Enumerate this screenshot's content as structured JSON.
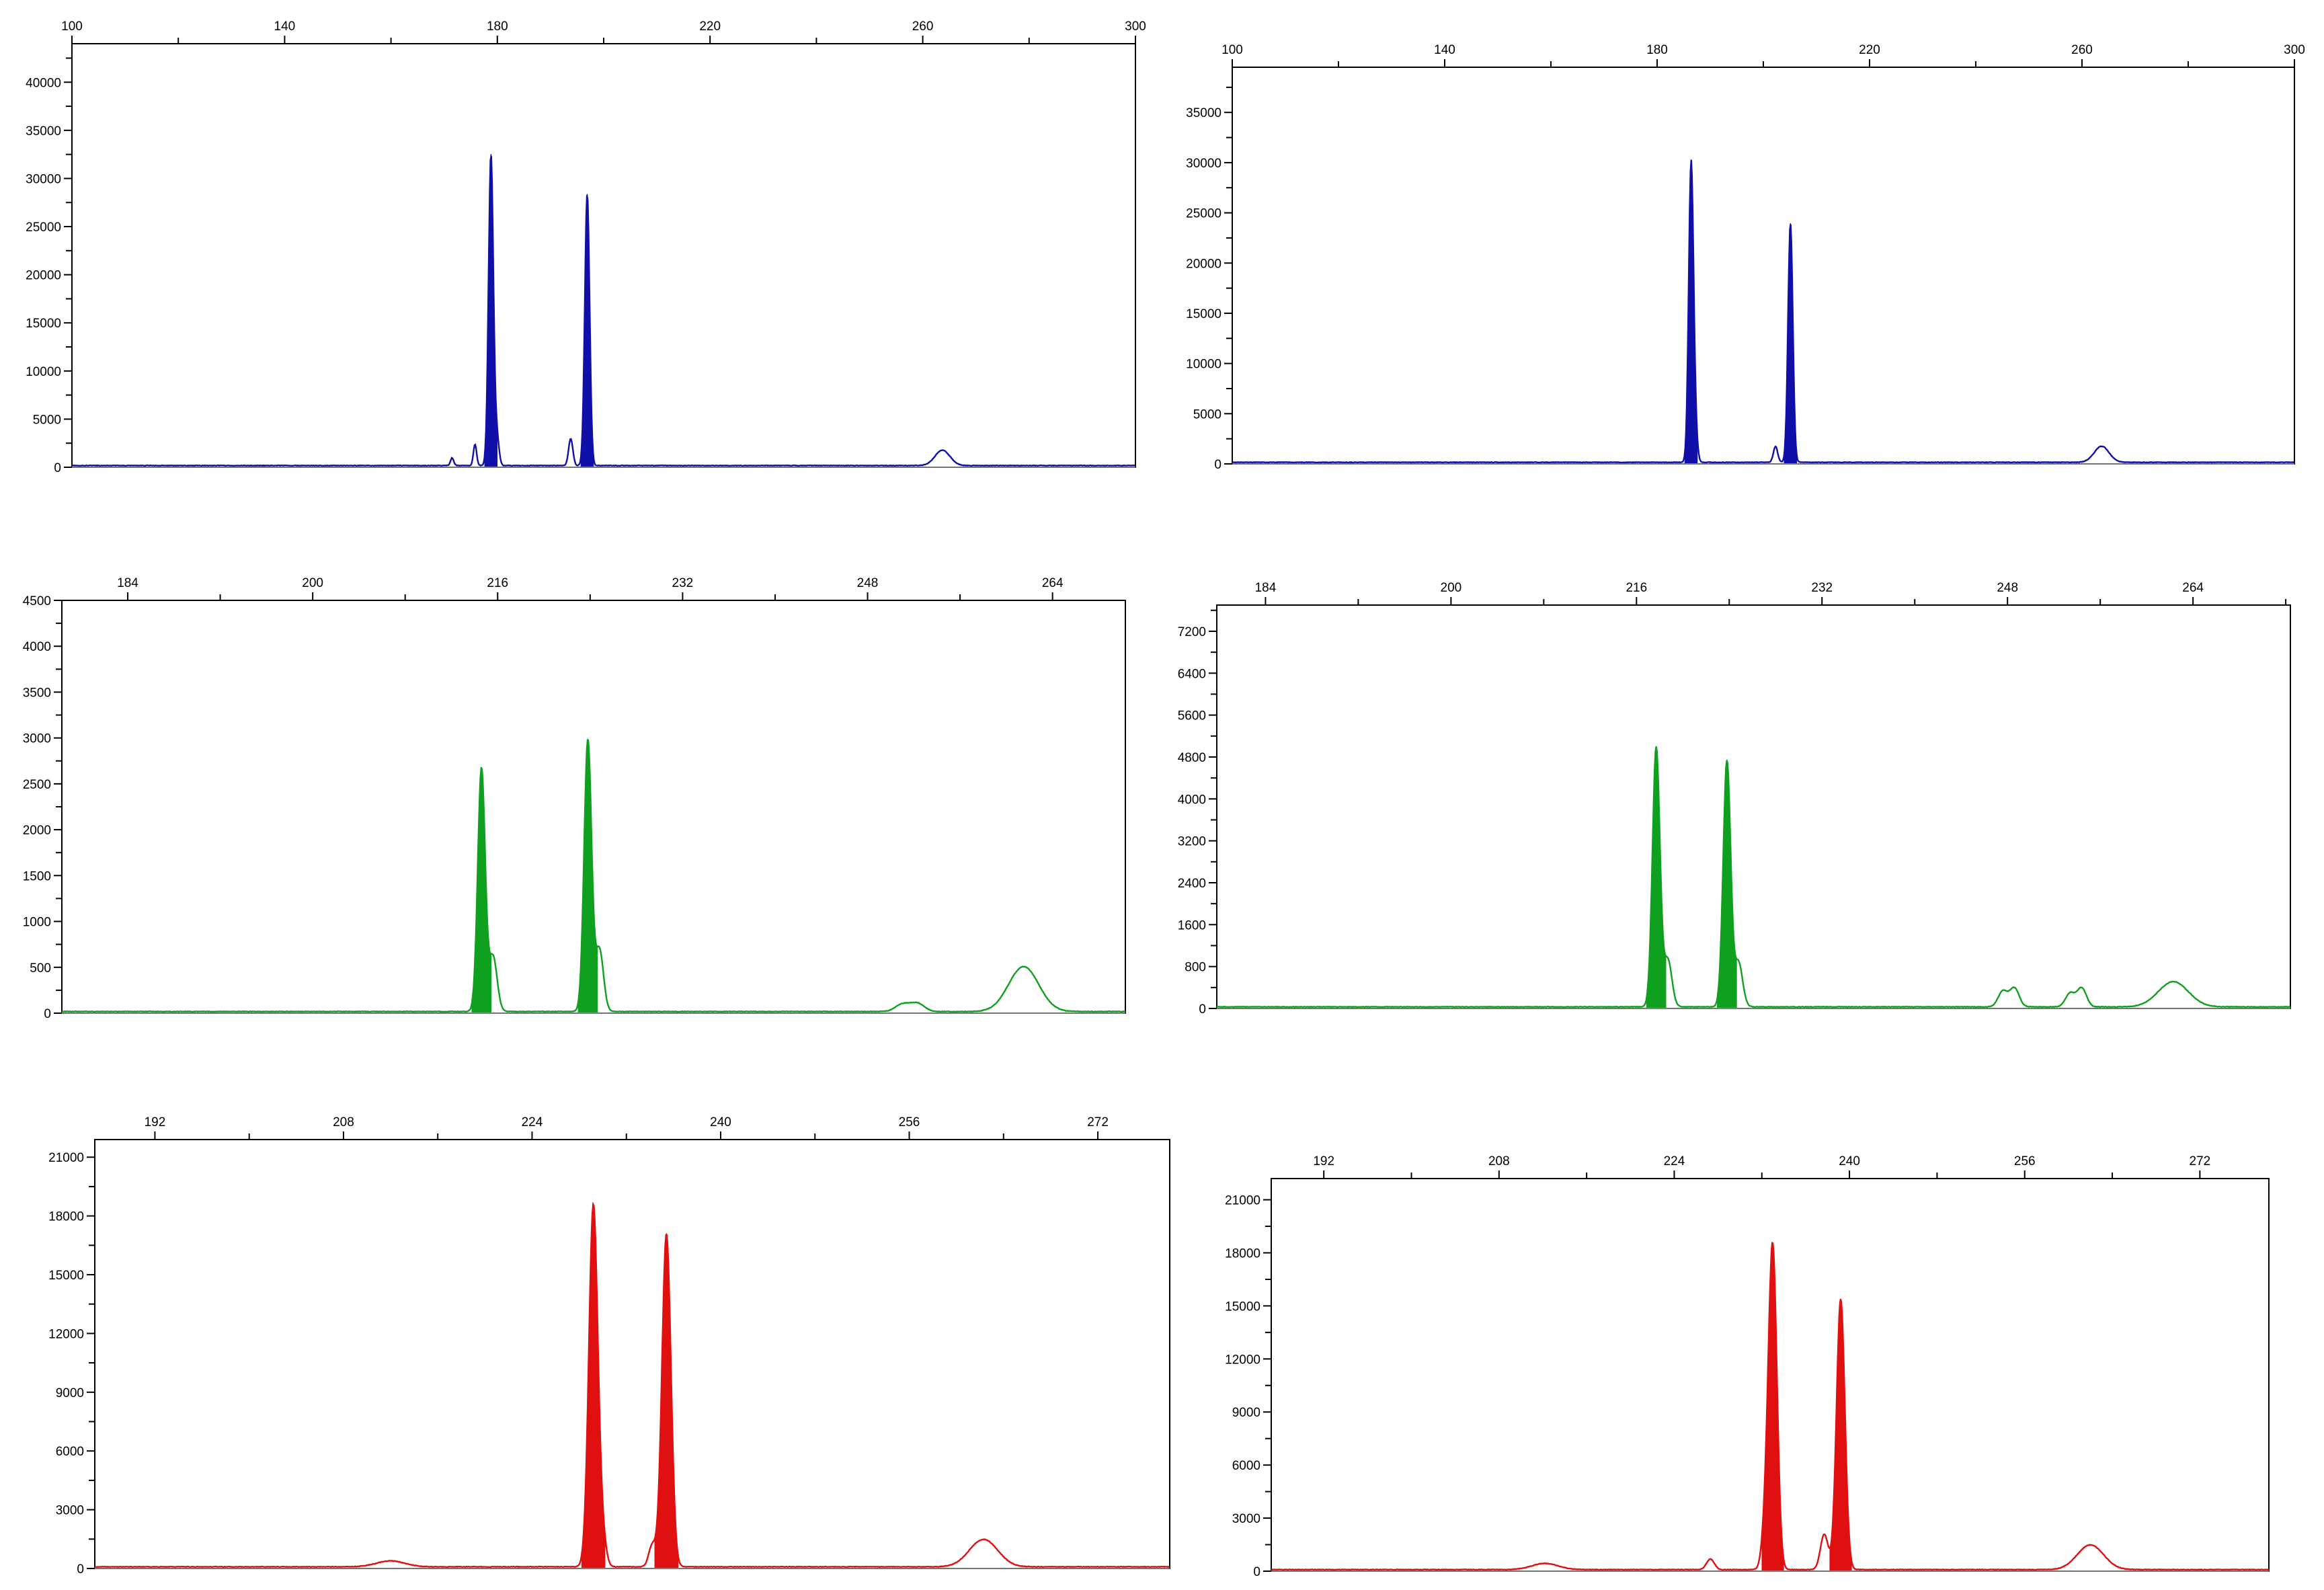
{
  "chart_data": [
    {
      "type": "line",
      "color": "#1010a8",
      "x_ticks": [
        100,
        140,
        180,
        220,
        260,
        300
      ],
      "y_ticks": [
        0,
        5000,
        10000,
        15000,
        20000,
        25000,
        30000,
        35000,
        40000
      ],
      "xlim": [
        100,
        300
      ],
      "ylim": [
        0,
        44000
      ],
      "peaks": [
        {
          "x": 171.5,
          "y": 800,
          "w": 0.3,
          "fill": false
        },
        {
          "x": 175.8,
          "y": 2200,
          "w": 0.3,
          "fill": false
        },
        {
          "x": 178.8,
          "y": 32300,
          "w": 0.45,
          "fill": true
        },
        {
          "x": 179.9,
          "y": 3000,
          "w": 0.4,
          "fill": false
        },
        {
          "x": 193.8,
          "y": 2800,
          "w": 0.4,
          "fill": false
        },
        {
          "x": 196.9,
          "y": 28200,
          "w": 0.45,
          "fill": true
        },
        {
          "x": 263.7,
          "y": 1600,
          "w": 1.4,
          "fill": false
        }
      ]
    },
    {
      "type": "line",
      "color": "#1010a8",
      "x_ticks": [
        100,
        140,
        180,
        220,
        260,
        300
      ],
      "y_ticks": [
        0,
        5000,
        10000,
        15000,
        20000,
        25000,
        30000,
        35000
      ],
      "xlim": [
        100,
        300
      ],
      "ylim": [
        0,
        39500
      ],
      "peaks": [
        {
          "x": 186.4,
          "y": 29800,
          "w": 0.45,
          "fill": true
        },
        {
          "x": 187.2,
          "y": 2500,
          "w": 0.4,
          "fill": false
        },
        {
          "x": 202.3,
          "y": 1600,
          "w": 0.4,
          "fill": false
        },
        {
          "x": 205.1,
          "y": 23800,
          "w": 0.45,
          "fill": true
        },
        {
          "x": 263.7,
          "y": 1600,
          "w": 1.4,
          "fill": false
        }
      ]
    },
    {
      "type": "line",
      "color": "#10a020",
      "x_ticks": [
        184,
        200,
        216,
        232,
        248,
        264
      ],
      "y_ticks": [
        0,
        500,
        1000,
        1500,
        2000,
        2500,
        3000,
        3500,
        4000,
        4500
      ],
      "xlim": [
        178.3,
        270.3
      ],
      "ylim": [
        0,
        4500
      ],
      "peaks": [
        {
          "x": 214.6,
          "y": 2650,
          "w": 0.32,
          "fill": true
        },
        {
          "x": 215.6,
          "y": 600,
          "w": 0.35,
          "fill": false
        },
        {
          "x": 223.8,
          "y": 2960,
          "w": 0.32,
          "fill": true
        },
        {
          "x": 224.8,
          "y": 680,
          "w": 0.35,
          "fill": false
        },
        {
          "x": 251.0,
          "y": 80,
          "w": 0.6,
          "fill": false
        },
        {
          "x": 252.3,
          "y": 90,
          "w": 0.6,
          "fill": false
        },
        {
          "x": 261.5,
          "y": 490,
          "w": 1.3,
          "fill": false
        }
      ]
    },
    {
      "type": "line",
      "color": "#10a020",
      "x_ticks": [
        184,
        200,
        216,
        232,
        248,
        264
      ],
      "y_ticks": [
        0,
        800,
        1600,
        2400,
        3200,
        4000,
        4800,
        5600,
        6400,
        7200
      ],
      "xlim": [
        179.8,
        272.4
      ],
      "ylim": [
        0,
        7700
      ],
      "peaks": [
        {
          "x": 217.7,
          "y": 4950,
          "w": 0.32,
          "fill": true
        },
        {
          "x": 218.7,
          "y": 900,
          "w": 0.35,
          "fill": false
        },
        {
          "x": 223.8,
          "y": 4700,
          "w": 0.32,
          "fill": true
        },
        {
          "x": 224.8,
          "y": 850,
          "w": 0.35,
          "fill": false
        },
        {
          "x": 247.6,
          "y": 300,
          "w": 0.4,
          "fill": false
        },
        {
          "x": 248.6,
          "y": 360,
          "w": 0.4,
          "fill": false
        },
        {
          "x": 253.4,
          "y": 260,
          "w": 0.4,
          "fill": false
        },
        {
          "x": 254.4,
          "y": 360,
          "w": 0.4,
          "fill": false
        },
        {
          "x": 262.3,
          "y": 480,
          "w": 1.3,
          "fill": false
        }
      ]
    },
    {
      "type": "line",
      "color": "#e01010",
      "x_ticks": [
        192,
        208,
        224,
        240,
        256,
        272
      ],
      "y_ticks": [
        0,
        3000,
        6000,
        9000,
        12000,
        15000,
        18000,
        21000
      ],
      "xlim": [
        186.9,
        278.1
      ],
      "ylim": [
        0,
        21900
      ],
      "peaks": [
        {
          "x": 212.0,
          "y": 300,
          "w": 1.2,
          "fill": false
        },
        {
          "x": 230.0,
          "y": 1200,
          "w": 0.3,
          "fill": false
        },
        {
          "x": 229.2,
          "y": 18500,
          "w": 0.38,
          "fill": true
        },
        {
          "x": 234.2,
          "y": 1100,
          "w": 0.3,
          "fill": false
        },
        {
          "x": 235.4,
          "y": 17000,
          "w": 0.38,
          "fill": true
        },
        {
          "x": 262.3,
          "y": 1400,
          "w": 1.2,
          "fill": false
        }
      ]
    },
    {
      "type": "line",
      "color": "#e01010",
      "x_ticks": [
        192,
        208,
        224,
        240,
        256,
        272
      ],
      "y_ticks": [
        0,
        3000,
        6000,
        9000,
        12000,
        15000,
        18000,
        21000
      ],
      "xlim": [
        187.2,
        278.3
      ],
      "ylim": [
        0,
        22200
      ],
      "peaks": [
        {
          "x": 212.2,
          "y": 350,
          "w": 1.2,
          "fill": false
        },
        {
          "x": 227.3,
          "y": 600,
          "w": 0.35,
          "fill": false
        },
        {
          "x": 232.4,
          "y": 2500,
          "w": 0.35,
          "fill": false
        },
        {
          "x": 233.0,
          "y": 17900,
          "w": 0.38,
          "fill": true
        },
        {
          "x": 237.7,
          "y": 2000,
          "w": 0.35,
          "fill": false
        },
        {
          "x": 239.2,
          "y": 15300,
          "w": 0.38,
          "fill": true
        },
        {
          "x": 262.0,
          "y": 1400,
          "w": 1.2,
          "fill": false
        }
      ]
    }
  ]
}
